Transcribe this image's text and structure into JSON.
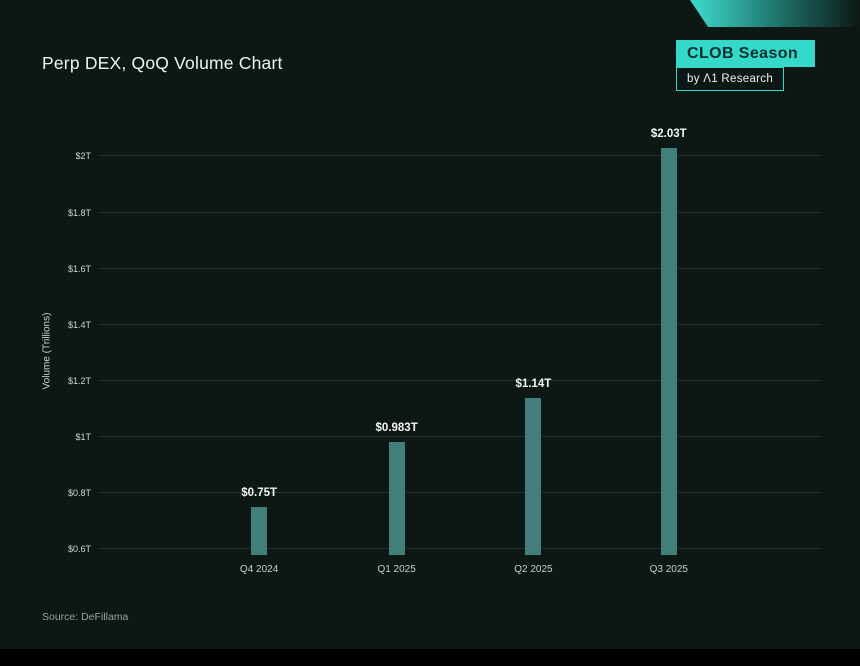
{
  "header": {
    "title": "Perp DEX, QoQ Volume Chart"
  },
  "branding": {
    "badge_label": "CLOB Season",
    "byline": "by Λ1 Research",
    "accent_color": "#35d9c9"
  },
  "chart_data": {
    "type": "bar",
    "title": "Perp DEX, QoQ Volume Chart",
    "categories": [
      "Q4 2024",
      "Q1 2025",
      "Q2 2025",
      "Q3 2025"
    ],
    "values": [
      0.75,
      0.983,
      1.14,
      2.03
    ],
    "value_labels": [
      "$0.75T",
      "$0.983T",
      "$1.14T",
      "$2.03T"
    ],
    "xlabel": "",
    "ylabel": "Volume (Trillions)",
    "yticks": [
      0.6,
      0.8,
      1.0,
      1.2,
      1.4,
      1.6,
      1.8,
      2.0
    ],
    "ytick_labels": [
      "$0.6T",
      "$0.8T",
      "$1T",
      "$1.2T",
      "$1.4T",
      "$1.6T",
      "$1.8T",
      "$2T"
    ],
    "ylim": [
      0.58,
      2.03
    ],
    "grid": true,
    "legend": false,
    "bar_color": "#41807a",
    "bar_centers_pct": [
      22.1,
      41.2,
      60.2,
      79.0
    ]
  },
  "footer": {
    "source": "Source: DeFillama"
  }
}
